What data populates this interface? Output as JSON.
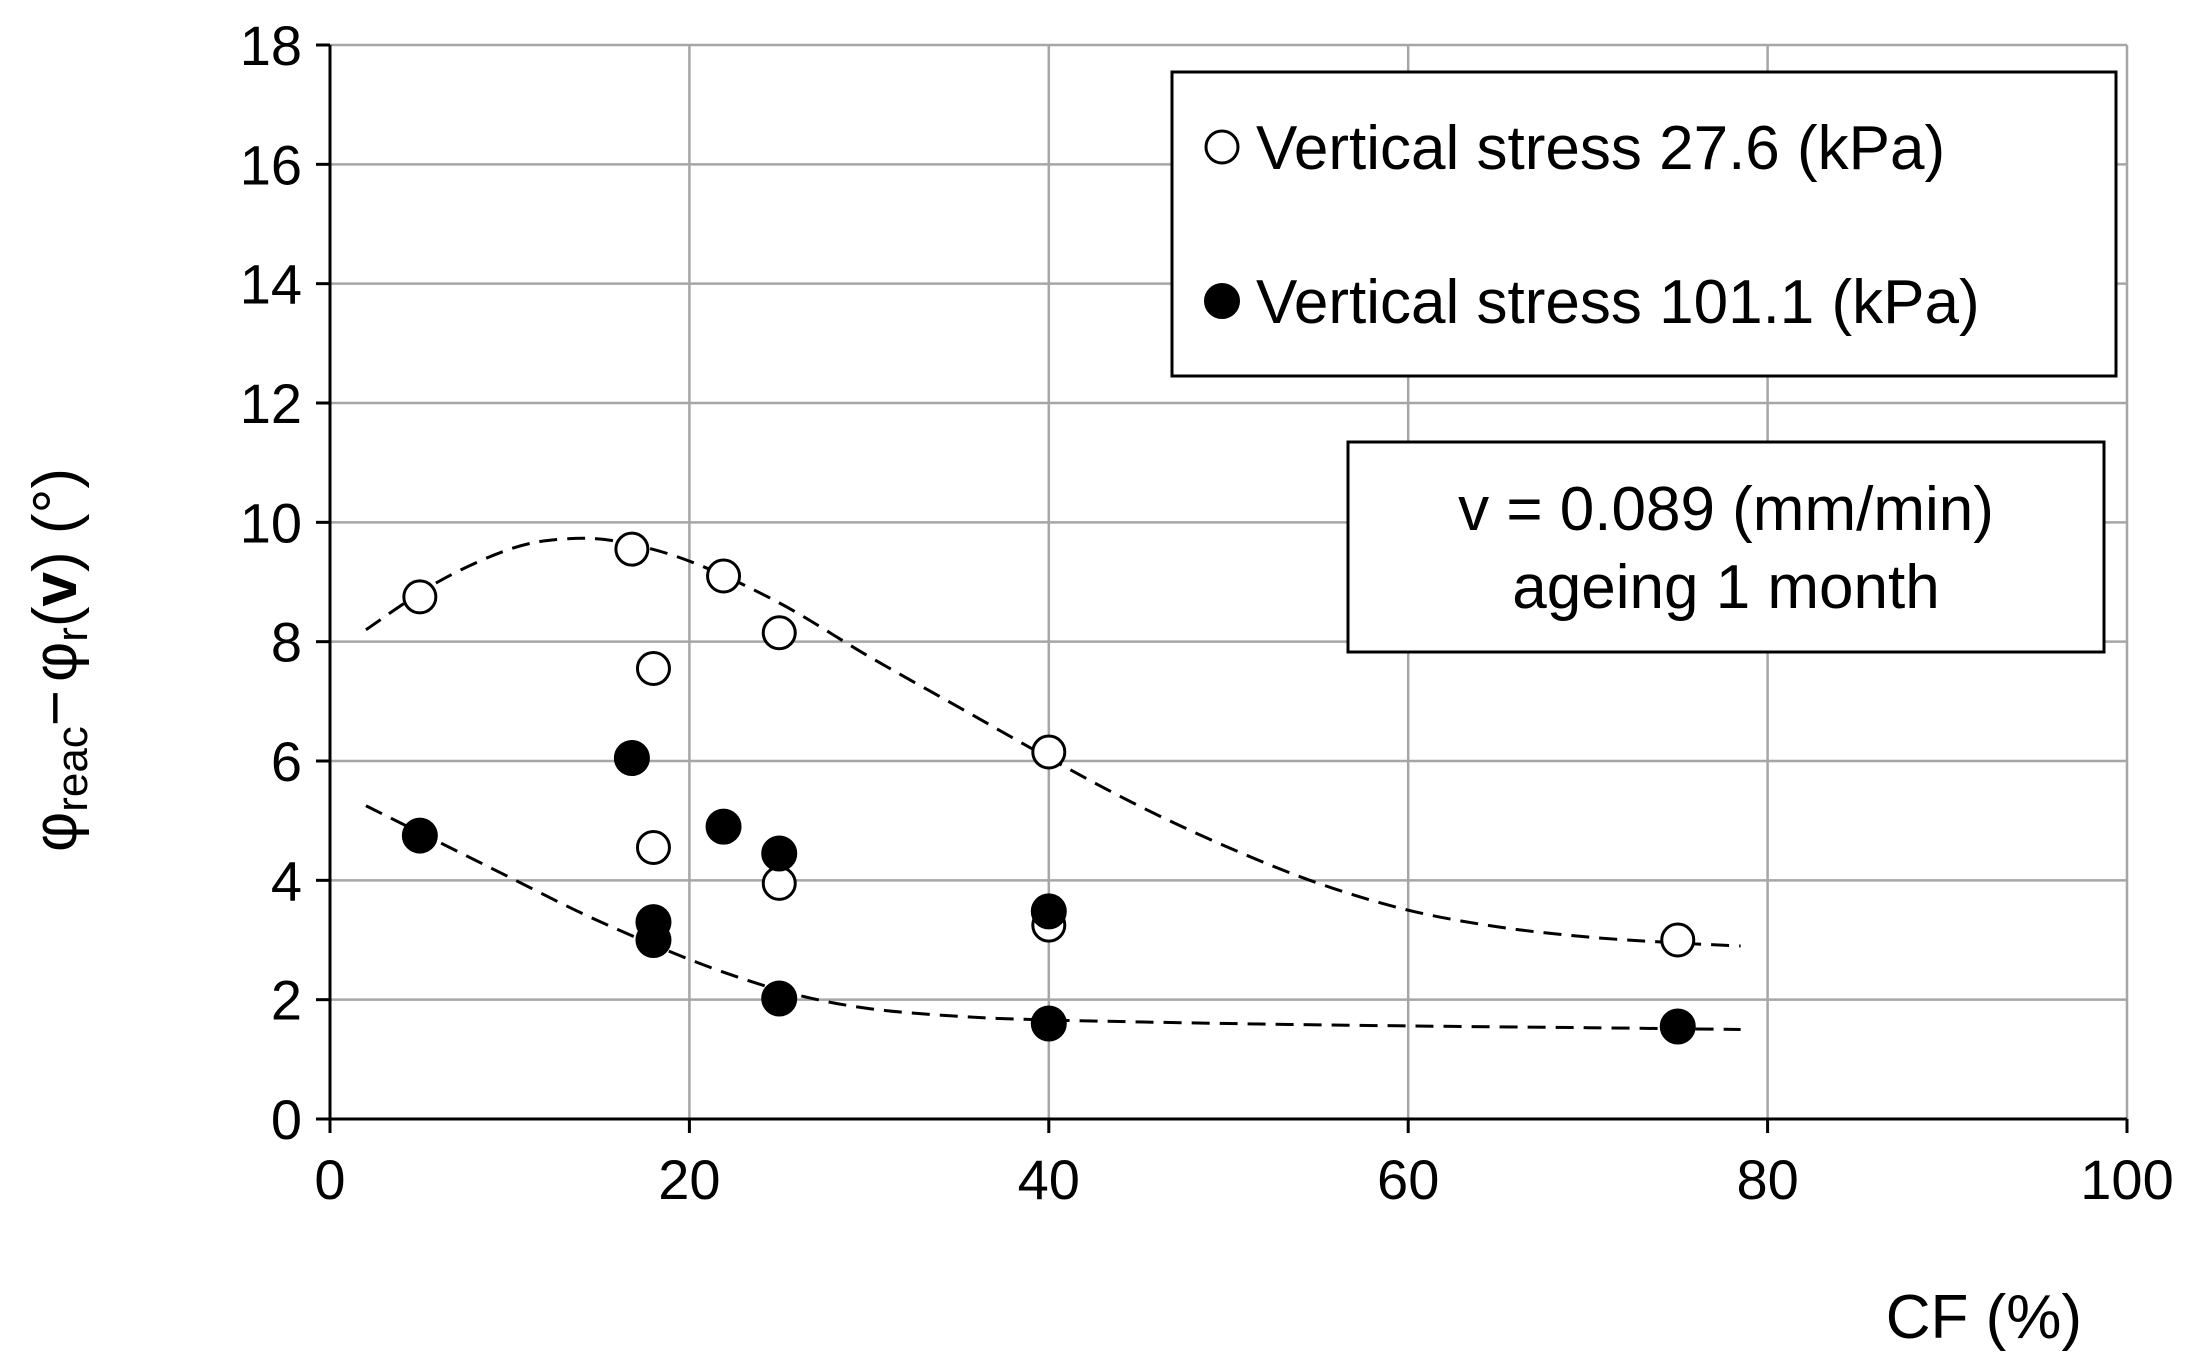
{
  "chart_data": {
    "type": "scatter",
    "title": "",
    "xlabel": "CF (%)",
    "ylabel": {
      "symbol": "φ",
      "sub1": "reac",
      "minus": "−",
      "sub2": "r",
      "tail1": "(",
      "v": "v",
      "tail2": ") (°)"
    },
    "xlim": [
      0,
      100
    ],
    "ylim": [
      0,
      18
    ],
    "xticks": [
      0,
      20,
      40,
      60,
      80,
      100
    ],
    "yticks": [
      0,
      2,
      4,
      6,
      8,
      10,
      12,
      14,
      16,
      18
    ],
    "grid": true,
    "legend_position": "top-right",
    "series": [
      {
        "name": "Vertical stress 27.6 (kPa)",
        "marker": "open-circle",
        "points": [
          {
            "x": 5,
            "y": 8.75
          },
          {
            "x": 16.8,
            "y": 9.55
          },
          {
            "x": 21.9,
            "y": 9.1
          },
          {
            "x": 25,
            "y": 8.15
          },
          {
            "x": 18,
            "y": 7.55
          },
          {
            "x": 18,
            "y": 4.55
          },
          {
            "x": 25,
            "y": 3.95
          },
          {
            "x": 40,
            "y": 6.15
          },
          {
            "x": 40,
            "y": 3.25
          },
          {
            "x": 75,
            "y": 3.0
          }
        ],
        "trend": [
          {
            "x": 2,
            "y": 8.2
          },
          {
            "x": 6,
            "y": 9.0
          },
          {
            "x": 10,
            "y": 9.55
          },
          {
            "x": 13,
            "y": 9.72
          },
          {
            "x": 16,
            "y": 9.68
          },
          {
            "x": 20,
            "y": 9.35
          },
          {
            "x": 25,
            "y": 8.65
          },
          {
            "x": 30,
            "y": 7.75
          },
          {
            "x": 35,
            "y": 6.9
          },
          {
            "x": 40,
            "y": 6.05
          },
          {
            "x": 45,
            "y": 5.25
          },
          {
            "x": 50,
            "y": 4.55
          },
          {
            "x": 55,
            "y": 3.95
          },
          {
            "x": 60,
            "y": 3.5
          },
          {
            "x": 65,
            "y": 3.22
          },
          {
            "x": 70,
            "y": 3.05
          },
          {
            "x": 75,
            "y": 2.95
          },
          {
            "x": 78.5,
            "y": 2.9
          }
        ]
      },
      {
        "name": "Vertical stress 101.1 (kPa)",
        "marker": "filled-circle",
        "points": [
          {
            "x": 5,
            "y": 4.75
          },
          {
            "x": 16.8,
            "y": 6.05
          },
          {
            "x": 21.9,
            "y": 4.9
          },
          {
            "x": 25,
            "y": 4.45
          },
          {
            "x": 18,
            "y": 3.3
          },
          {
            "x": 18,
            "y": 3.0
          },
          {
            "x": 25,
            "y": 2.02
          },
          {
            "x": 40,
            "y": 3.48
          },
          {
            "x": 40,
            "y": 1.6
          },
          {
            "x": 75,
            "y": 1.55
          }
        ],
        "trend": [
          {
            "x": 2,
            "y": 5.25
          },
          {
            "x": 6,
            "y": 4.65
          },
          {
            "x": 10,
            "y": 4.05
          },
          {
            "x": 14,
            "y": 3.45
          },
          {
            "x": 18,
            "y": 2.92
          },
          {
            "x": 22,
            "y": 2.45
          },
          {
            "x": 26,
            "y": 2.08
          },
          {
            "x": 30,
            "y": 1.85
          },
          {
            "x": 35,
            "y": 1.72
          },
          {
            "x": 40,
            "y": 1.66
          },
          {
            "x": 50,
            "y": 1.6
          },
          {
            "x": 60,
            "y": 1.56
          },
          {
            "x": 70,
            "y": 1.53
          },
          {
            "x": 78.5,
            "y": 1.5
          }
        ]
      }
    ],
    "annotation": {
      "line1": "v = 0.089 (mm/min)",
      "line2": "ageing 1 month"
    }
  }
}
